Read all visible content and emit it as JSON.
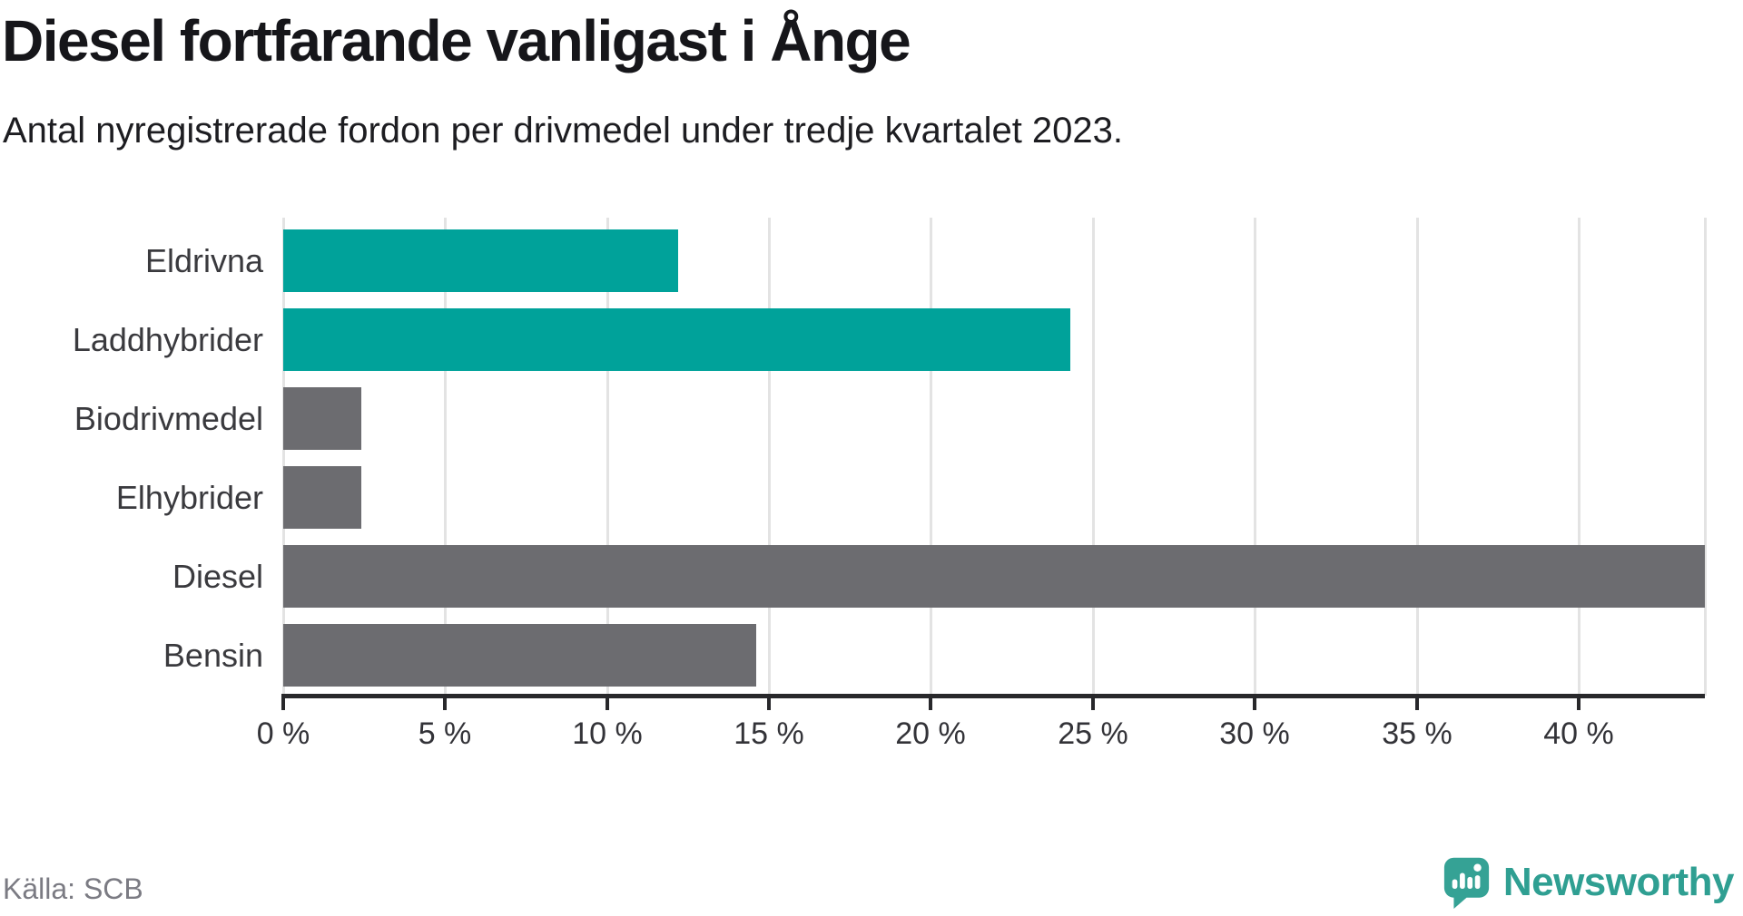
{
  "header": {
    "title": "Diesel fortfarande vanligast i Ånge",
    "subtitle": "Antal nyregistrerade fordon per drivmedel under tredje kvartalet 2023."
  },
  "chart_data": {
    "type": "bar",
    "orientation": "horizontal",
    "title": "Diesel fortfarande vanligast i Ånge",
    "subtitle": "Antal nyregistrerade fordon per drivmedel under tredje kvartalet 2023.",
    "categories": [
      "Eldrivna",
      "Laddhybrider",
      "Biodrivmedel",
      "Elhybrider",
      "Diesel",
      "Bensin"
    ],
    "values": [
      12.2,
      24.3,
      2.4,
      2.4,
      43.9,
      14.6
    ],
    "unit": "%",
    "bar_colors": [
      "#00A29A",
      "#00A29A",
      "#6C6C70",
      "#6C6C70",
      "#6C6C70",
      "#6C6C70"
    ],
    "xlabel": "",
    "ylabel": "",
    "xlim": [
      0,
      43.9
    ],
    "xticks": [
      0,
      5,
      10,
      15,
      20,
      25,
      30,
      35,
      40
    ],
    "xtick_labels": [
      "0 %",
      "5 %",
      "10 %",
      "15 %",
      "20 %",
      "25 %",
      "30 %",
      "35 %",
      "40 %"
    ],
    "grid": true,
    "legend": false
  },
  "colors": {
    "highlight_bar": "#00A29A",
    "muted_bar": "#6C6C70",
    "gridline": "#E3E3E3",
    "axis": "#28282B",
    "title_text": "#16161A",
    "subtitle_text": "#1D1D21",
    "label_text": "#3A3A3E",
    "source_text": "#7B7B83",
    "brand_teal": "#2F9F92",
    "logo_teal": "#35A295"
  },
  "footer": {
    "source": "Källa: SCB",
    "brand": {
      "name": "Newsworthy",
      "logo_icon": "newsworthy-speech-bubble-chart-icon"
    }
  }
}
